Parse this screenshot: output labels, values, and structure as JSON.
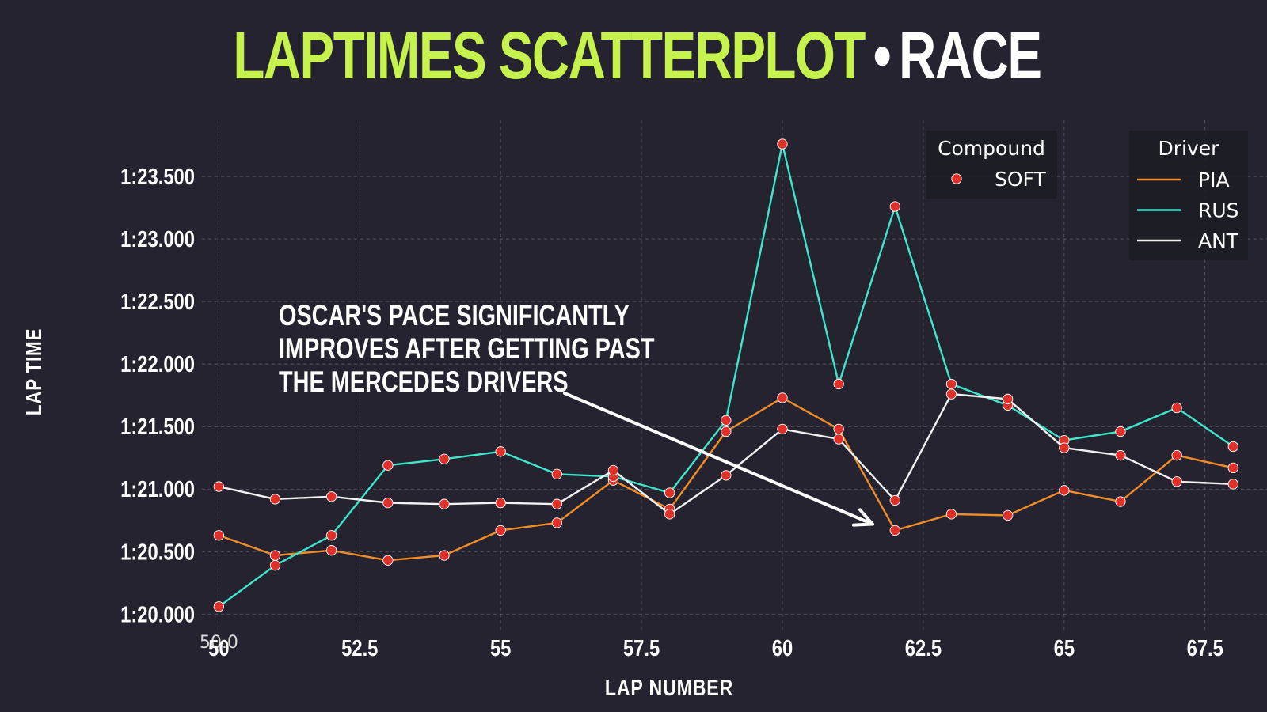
{
  "title": {
    "part1": "LAPTIMES SCATTERPLOT",
    "separator": "•",
    "part2": "RACE"
  },
  "colors": {
    "background": "#24232f",
    "title_accent": "#c6f24e",
    "grid": "#6b6b78",
    "marker_fill": "#e0302a",
    "marker_edge": "#ffffff",
    "text": "#ffffff",
    "legend_bg": "#1c1c24"
  },
  "chart_data": {
    "type": "scatter",
    "xlabel": "LAP NUMBER",
    "ylabel": "LAP TIME",
    "xlim": [
      49.7,
      68.6
    ],
    "ylim": [
      79.85,
      83.95
    ],
    "x_ticks": [
      {
        "value": 50,
        "label": "50"
      },
      {
        "value": 52.5,
        "label": "52.5"
      },
      {
        "value": 55,
        "label": "55"
      },
      {
        "value": 57.5,
        "label": "57.5"
      },
      {
        "value": 60,
        "label": "60"
      },
      {
        "value": 62.5,
        "label": "62.5"
      },
      {
        "value": 65,
        "label": "65"
      },
      {
        "value": 67.5,
        "label": "67.5"
      }
    ],
    "x_tick_overlap_label": "50.0",
    "y_ticks": [
      {
        "value": 80.0,
        "label": "1:20.000"
      },
      {
        "value": 80.5,
        "label": "1:20.500"
      },
      {
        "value": 81.0,
        "label": "1:21.000"
      },
      {
        "value": 81.5,
        "label": "1:21.500"
      },
      {
        "value": 82.0,
        "label": "1:22.000"
      },
      {
        "value": 82.5,
        "label": "1:22.500"
      },
      {
        "value": 83.0,
        "label": "1:23.000"
      },
      {
        "value": 83.5,
        "label": "1:23.500"
      }
    ],
    "grid": true,
    "x": [
      50,
      51,
      52,
      53,
      54,
      55,
      56,
      57,
      58,
      59,
      60,
      61,
      62,
      63,
      64,
      65,
      66,
      67,
      68
    ],
    "series": [
      {
        "name": "PIA",
        "color": "#f28c28",
        "values": [
          80.63,
          80.47,
          80.51,
          80.43,
          80.47,
          80.67,
          80.73,
          81.07,
          80.84,
          81.46,
          81.73,
          81.48,
          80.67,
          80.8,
          80.79,
          80.99,
          80.9,
          81.27,
          81.17
        ]
      },
      {
        "name": "RUS",
        "color": "#3ee6cc",
        "values": [
          80.06,
          80.39,
          80.63,
          81.19,
          81.24,
          81.3,
          81.12,
          81.1,
          80.97,
          81.55,
          83.76,
          81.84,
          83.26,
          81.84,
          81.67,
          81.39,
          81.46,
          81.65,
          81.34
        ]
      },
      {
        "name": "ANT",
        "color": "#f2f2f2",
        "values": [
          81.02,
          80.92,
          80.94,
          80.89,
          80.88,
          80.89,
          80.88,
          81.15,
          80.8,
          81.11,
          81.48,
          81.4,
          80.91,
          81.76,
          81.72,
          81.33,
          81.27,
          81.06,
          81.04
        ]
      }
    ],
    "legend_compound": {
      "title": "Compound",
      "entries": [
        {
          "label": "SOFT",
          "color": "#e0302a"
        }
      ],
      "placement": "top-right"
    },
    "legend_driver": {
      "title": "Driver",
      "entries": [
        "PIA",
        "RUS",
        "ANT"
      ],
      "placement": "top-right"
    },
    "annotation": {
      "lines": [
        "OSCAR'S PACE SIGNIFICANTLY",
        "IMPROVES AFTER GETTING PAST",
        "THE MERCEDES DRIVERS"
      ],
      "arrow_to": {
        "x": 61.6,
        "y": 80.72
      }
    }
  }
}
